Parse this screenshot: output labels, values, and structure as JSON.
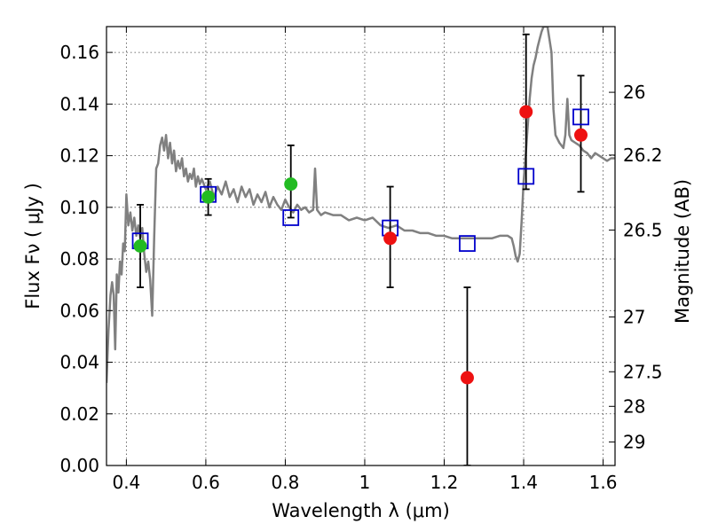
{
  "chart_data": {
    "type": "scatter",
    "xlabel": "Wavelength  λ (μm)",
    "ylabel": "Flux  Fν  ( μJy )",
    "y2label": "Magnitude (AB)",
    "xlim": [
      0.35,
      1.63
    ],
    "ylim": [
      0.0,
      0.17
    ],
    "grid": true,
    "x_ticks": [
      {
        "value": 0.4,
        "label": "0.4"
      },
      {
        "value": 0.6,
        "label": "0.6"
      },
      {
        "value": 0.8,
        "label": "0.8"
      },
      {
        "value": 1.0,
        "label": "1"
      },
      {
        "value": 1.2,
        "label": "1.2"
      },
      {
        "value": 1.4,
        "label": "1.4"
      },
      {
        "value": 1.6,
        "label": "1.6"
      }
    ],
    "y_ticks": [
      {
        "value": 0.0,
        "label": "0.00"
      },
      {
        "value": 0.02,
        "label": "0.02"
      },
      {
        "value": 0.04,
        "label": "0.04"
      },
      {
        "value": 0.06,
        "label": "0.06"
      },
      {
        "value": 0.08,
        "label": "0.08"
      },
      {
        "value": 0.1,
        "label": "0.10"
      },
      {
        "value": 0.12,
        "label": "0.12"
      },
      {
        "value": 0.14,
        "label": "0.14"
      },
      {
        "value": 0.16,
        "label": "0.16"
      }
    ],
    "y2_ticks": [
      {
        "mag": 26,
        "label": "26"
      },
      {
        "mag": 26.2,
        "label": "26.2"
      },
      {
        "mag": 26.5,
        "label": "26.5"
      },
      {
        "mag": 27,
        "label": "27"
      },
      {
        "mag": 27.5,
        "label": "27.5"
      },
      {
        "mag": 28,
        "label": "28"
      },
      {
        "mag": 29,
        "label": "29"
      }
    ],
    "colors": {
      "template": "#808080",
      "green_points": "#22bb22",
      "red_points": "#ee1111",
      "model_squares": "#0000cc",
      "error_bars": "#000000",
      "grid": "#444444"
    },
    "template_spectrum": [
      [
        0.35,
        0.032
      ],
      [
        0.355,
        0.052
      ],
      [
        0.36,
        0.066
      ],
      [
        0.364,
        0.071
      ],
      [
        0.368,
        0.066
      ],
      [
        0.372,
        0.045
      ],
      [
        0.376,
        0.074
      ],
      [
        0.38,
        0.067
      ],
      [
        0.384,
        0.079
      ],
      [
        0.388,
        0.074
      ],
      [
        0.392,
        0.086
      ],
      [
        0.396,
        0.083
      ],
      [
        0.4,
        0.105
      ],
      [
        0.405,
        0.093
      ],
      [
        0.41,
        0.098
      ],
      [
        0.415,
        0.091
      ],
      [
        0.42,
        0.096
      ],
      [
        0.425,
        0.089
      ],
      [
        0.43,
        0.093
      ],
      [
        0.435,
        0.088
      ],
      [
        0.44,
        0.092
      ],
      [
        0.445,
        0.082
      ],
      [
        0.45,
        0.075
      ],
      [
        0.455,
        0.079
      ],
      [
        0.46,
        0.072
      ],
      [
        0.465,
        0.058
      ],
      [
        0.47,
        0.088
      ],
      [
        0.475,
        0.115
      ],
      [
        0.48,
        0.117
      ],
      [
        0.485,
        0.124
      ],
      [
        0.49,
        0.127
      ],
      [
        0.495,
        0.122
      ],
      [
        0.5,
        0.128
      ],
      [
        0.505,
        0.119
      ],
      [
        0.51,
        0.125
      ],
      [
        0.515,
        0.117
      ],
      [
        0.52,
        0.122
      ],
      [
        0.525,
        0.114
      ],
      [
        0.53,
        0.118
      ],
      [
        0.535,
        0.115
      ],
      [
        0.54,
        0.119
      ],
      [
        0.545,
        0.112
      ],
      [
        0.55,
        0.115
      ],
      [
        0.555,
        0.11
      ],
      [
        0.56,
        0.113
      ],
      [
        0.565,
        0.111
      ],
      [
        0.57,
        0.115
      ],
      [
        0.575,
        0.108
      ],
      [
        0.58,
        0.112
      ],
      [
        0.585,
        0.109
      ],
      [
        0.59,
        0.111
      ],
      [
        0.6,
        0.107
      ],
      [
        0.61,
        0.11
      ],
      [
        0.62,
        0.104
      ],
      [
        0.63,
        0.108
      ],
      [
        0.64,
        0.105
      ],
      [
        0.65,
        0.11
      ],
      [
        0.66,
        0.104
      ],
      [
        0.67,
        0.107
      ],
      [
        0.68,
        0.102
      ],
      [
        0.69,
        0.108
      ],
      [
        0.7,
        0.104
      ],
      [
        0.71,
        0.107
      ],
      [
        0.72,
        0.101
      ],
      [
        0.73,
        0.105
      ],
      [
        0.74,
        0.102
      ],
      [
        0.75,
        0.106
      ],
      [
        0.76,
        0.1
      ],
      [
        0.77,
        0.104
      ],
      [
        0.78,
        0.101
      ],
      [
        0.79,
        0.099
      ],
      [
        0.8,
        0.103
      ],
      [
        0.81,
        0.1
      ],
      [
        0.82,
        0.098
      ],
      [
        0.83,
        0.101
      ],
      [
        0.84,
        0.099
      ],
      [
        0.85,
        0.1
      ],
      [
        0.86,
        0.098
      ],
      [
        0.87,
        0.099
      ],
      [
        0.875,
        0.115
      ],
      [
        0.88,
        0.099
      ],
      [
        0.89,
        0.097
      ],
      [
        0.9,
        0.098
      ],
      [
        0.92,
        0.097
      ],
      [
        0.94,
        0.097
      ],
      [
        0.96,
        0.095
      ],
      [
        0.98,
        0.096
      ],
      [
        1.0,
        0.095
      ],
      [
        1.02,
        0.096
      ],
      [
        1.04,
        0.093
      ],
      [
        1.06,
        0.092
      ],
      [
        1.08,
        0.093
      ],
      [
        1.1,
        0.091
      ],
      [
        1.12,
        0.091
      ],
      [
        1.14,
        0.09
      ],
      [
        1.16,
        0.09
      ],
      [
        1.18,
        0.089
      ],
      [
        1.2,
        0.089
      ],
      [
        1.22,
        0.088
      ],
      [
        1.24,
        0.088
      ],
      [
        1.26,
        0.088
      ],
      [
        1.28,
        0.088
      ],
      [
        1.3,
        0.088
      ],
      [
        1.32,
        0.088
      ],
      [
        1.34,
        0.089
      ],
      [
        1.36,
        0.089
      ],
      [
        1.37,
        0.088
      ],
      [
        1.375,
        0.085
      ],
      [
        1.38,
        0.081
      ],
      [
        1.385,
        0.079
      ],
      [
        1.39,
        0.082
      ],
      [
        1.395,
        0.095
      ],
      [
        1.4,
        0.11
      ],
      [
        1.405,
        0.12
      ],
      [
        1.41,
        0.131
      ],
      [
        1.415,
        0.142
      ],
      [
        1.42,
        0.15
      ],
      [
        1.425,
        0.155
      ],
      [
        1.43,
        0.158
      ],
      [
        1.435,
        0.162
      ],
      [
        1.44,
        0.165
      ],
      [
        1.445,
        0.168
      ],
      [
        1.45,
        0.17
      ],
      [
        1.46,
        0.17
      ],
      [
        1.47,
        0.16
      ],
      [
        1.475,
        0.138
      ],
      [
        1.48,
        0.128
      ],
      [
        1.49,
        0.125
      ],
      [
        1.5,
        0.123
      ],
      [
        1.505,
        0.128
      ],
      [
        1.51,
        0.142
      ],
      [
        1.515,
        0.128
      ],
      [
        1.52,
        0.126
      ],
      [
        1.53,
        0.125
      ],
      [
        1.54,
        0.124
      ],
      [
        1.55,
        0.122
      ],
      [
        1.56,
        0.121
      ],
      [
        1.57,
        0.119
      ],
      [
        1.58,
        0.121
      ],
      [
        1.59,
        0.12
      ],
      [
        1.6,
        0.119
      ],
      [
        1.61,
        0.118
      ],
      [
        1.62,
        0.119
      ],
      [
        1.63,
        0.119
      ]
    ],
    "green_points": [
      {
        "x": 0.435,
        "y": 0.085
      },
      {
        "x": 0.606,
        "y": 0.104
      },
      {
        "x": 0.814,
        "y": 0.109
      }
    ],
    "red_points": [
      {
        "x": 1.064,
        "y": 0.088
      },
      {
        "x": 1.258,
        "y": 0.034
      },
      {
        "x": 1.406,
        "y": 0.137
      },
      {
        "x": 1.544,
        "y": 0.128
      }
    ],
    "model_squares": [
      {
        "x": 0.435,
        "y": 0.087
      },
      {
        "x": 0.606,
        "y": 0.105
      },
      {
        "x": 0.814,
        "y": 0.096
      },
      {
        "x": 1.064,
        "y": 0.092
      },
      {
        "x": 1.258,
        "y": 0.086
      },
      {
        "x": 1.406,
        "y": 0.112
      },
      {
        "x": 1.544,
        "y": 0.135
      }
    ],
    "error_bars": [
      {
        "x": 0.435,
        "low": 0.069,
        "high": 0.101
      },
      {
        "x": 0.606,
        "low": 0.097,
        "high": 0.111
      },
      {
        "x": 0.814,
        "low": 0.096,
        "high": 0.124
      },
      {
        "x": 1.064,
        "low": 0.069,
        "high": 0.108
      },
      {
        "x": 1.258,
        "low": 0.0,
        "high": 0.069
      },
      {
        "x": 1.406,
        "low": 0.107,
        "high": 0.167
      },
      {
        "x": 1.544,
        "low": 0.106,
        "high": 0.151
      }
    ]
  }
}
